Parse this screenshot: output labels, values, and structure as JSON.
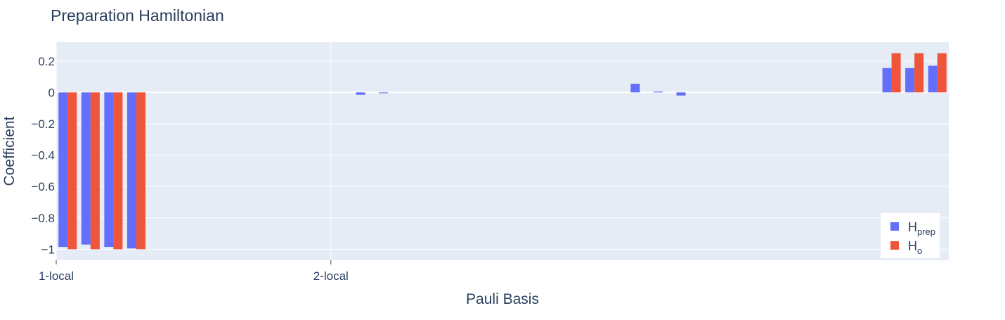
{
  "chart_data": {
    "type": "bar",
    "title": "Preparation Hamiltonian",
    "xlabel": "Pauli Basis",
    "ylabel": "Coefficient",
    "x_tick_labels": [
      {
        "index": 0,
        "label": "1-local"
      },
      {
        "index": 12,
        "label": "2-local"
      }
    ],
    "n_slots": 39,
    "ylim": [
      -1.07,
      0.32
    ],
    "yticks": [
      0.2,
      0,
      -0.2,
      -0.4,
      -0.6,
      -0.8,
      -1
    ],
    "ytick_labels": [
      "0.2",
      "0",
      "−0.2",
      "−0.4",
      "−0.6",
      "−0.8",
      "−1"
    ],
    "grid": true,
    "legend": {
      "position": "bottom-right",
      "items": [
        {
          "base": "H",
          "sub": "prep",
          "color": "#636efa"
        },
        {
          "base": "H",
          "sub": "o",
          "color": "#ef553b"
        }
      ]
    },
    "series": [
      {
        "color": "#636efa",
        "values": [
          -0.985,
          -0.97,
          -0.985,
          -0.995,
          0,
          0,
          0,
          0,
          0,
          0,
          0,
          0,
          0,
          -0.015,
          -0.005,
          0,
          0,
          0,
          0,
          0,
          0,
          0,
          0,
          0,
          0,
          0.055,
          0.005,
          -0.02,
          0,
          0,
          0,
          0,
          0,
          0,
          0,
          0,
          0.155,
          0.155,
          0.17
        ]
      },
      {
        "color": "#ef553b",
        "values": [
          -1,
          -1,
          -1,
          -1,
          0,
          0,
          0,
          0,
          0,
          0,
          0,
          0,
          0,
          0,
          0,
          0,
          0,
          0,
          0,
          0,
          0,
          0,
          0,
          0,
          0,
          0,
          0,
          0,
          0,
          0,
          0,
          0,
          0,
          0,
          0,
          0,
          0.25,
          0.25,
          0.25
        ]
      }
    ]
  }
}
